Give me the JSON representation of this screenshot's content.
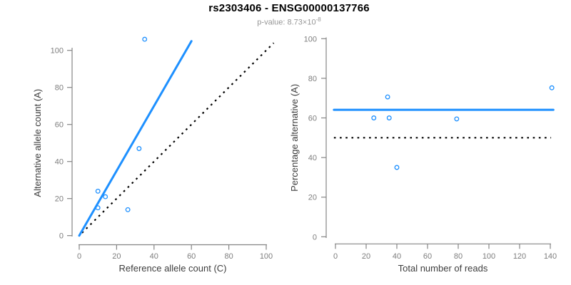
{
  "header": {
    "title": "rs2303406 - ENSG00000137766",
    "subtitle_prefix": "p-value: 8.73×10",
    "subtitle_exponent": "-8"
  },
  "colors": {
    "accent_blue": "#1E90FF",
    "axis_gray": "#858585",
    "tick_label_gray": "#7d7d7d",
    "axis_title_gray": "#3d3d3d",
    "reference_black": "#000000"
  },
  "chart_data": [
    {
      "id": "left",
      "type": "scatter",
      "xlabel": "Reference allele count (C)",
      "ylabel": "Alternative allele count (A)",
      "xticks": [
        0,
        20,
        40,
        60,
        80,
        100
      ],
      "yticks": [
        0,
        20,
        40,
        60,
        80,
        100
      ],
      "xlim": [
        -4,
        104
      ],
      "ylim": [
        -5,
        109
      ],
      "grid": false,
      "legend": null,
      "points": [
        [
          10,
          24
        ],
        [
          10,
          15
        ],
        [
          14,
          21
        ],
        [
          26,
          14
        ],
        [
          32,
          47
        ],
        [
          35,
          106
        ]
      ],
      "fit_line": {
        "x1": 0,
        "y1": 0,
        "x2": 60,
        "y2": 105
      },
      "ref_line": {
        "x1": 1.5,
        "y1": 1.5,
        "x2": 104,
        "y2": 104
      }
    },
    {
      "id": "right",
      "type": "scatter",
      "xlabel": "Total number of reads",
      "ylabel": "Percentage alternative (A)",
      "xticks": [
        0,
        20,
        40,
        60,
        80,
        100,
        120,
        140
      ],
      "yticks": [
        0,
        20,
        40,
        60,
        80,
        100
      ],
      "xlim": [
        -6,
        144
      ],
      "ylim": [
        -3,
        102
      ],
      "grid": false,
      "legend": null,
      "points": [
        [
          25,
          60
        ],
        [
          34,
          70.6
        ],
        [
          35,
          60
        ],
        [
          40,
          35
        ],
        [
          79,
          59.5
        ],
        [
          141,
          75.2
        ]
      ],
      "fit_line": {
        "x1": -1,
        "y1": 64.1,
        "x2": 142,
        "y2": 64.1
      },
      "ref_line": {
        "x1": -1,
        "y1": 50,
        "x2": 140.5,
        "y2": 50
      }
    }
  ]
}
